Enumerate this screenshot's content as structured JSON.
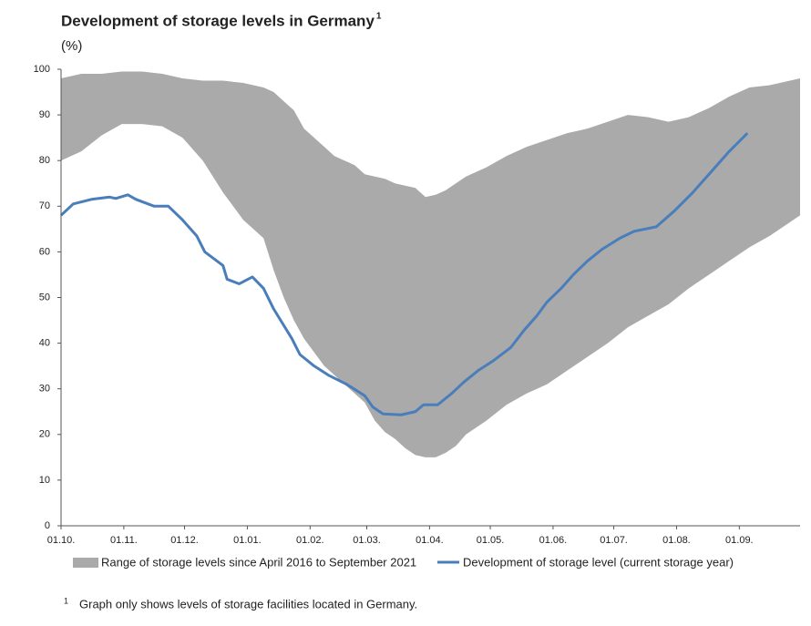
{
  "chart_data": {
    "type": "range-line",
    "title": "Development of storage levels in Germany",
    "y_label": "(%)",
    "xlim": [
      0,
      365
    ],
    "xticks": [
      {
        "value": 0,
        "label": "01.10."
      },
      {
        "value": 31,
        "label": "01.11."
      },
      {
        "value": 61,
        "label": "01.12."
      },
      {
        "value": 92,
        "label": "01.01."
      },
      {
        "value": 123,
        "label": "01.02."
      },
      {
        "value": 151,
        "label": "01.03."
      },
      {
        "value": 182,
        "label": "01.04."
      },
      {
        "value": 212,
        "label": "01.05."
      },
      {
        "value": 243,
        "label": "01.06."
      },
      {
        "value": 273,
        "label": "01.07."
      },
      {
        "value": 304,
        "label": "01.08."
      },
      {
        "value": 335,
        "label": "01.09."
      }
    ],
    "ylim": [
      0,
      100
    ],
    "yticks": [
      0,
      10,
      20,
      30,
      40,
      50,
      60,
      70,
      80,
      90,
      100
    ],
    "series": [
      {
        "name": "Range of storage levels since April 2016 to September 2021",
        "color": "#aaaaaa",
        "x": [
          0,
          10,
          20,
          30,
          40,
          50,
          60,
          70,
          80,
          90,
          100,
          105,
          110,
          115,
          120,
          125,
          130,
          135,
          140,
          145,
          150,
          155,
          160,
          165,
          170,
          175,
          180,
          185,
          190,
          195,
          200,
          210,
          220,
          230,
          240,
          250,
          260,
          270,
          280,
          290,
          300,
          310,
          320,
          330,
          340,
          350,
          365
        ],
        "upper": [
          98,
          99,
          99,
          99.5,
          99.5,
          99,
          98,
          97.5,
          97.5,
          97,
          96,
          95,
          93,
          91,
          87,
          85,
          83,
          81,
          80,
          79,
          77,
          76.5,
          76,
          75,
          74.5,
          74,
          72,
          72.5,
          73.5,
          75,
          76.5,
          78.5,
          81,
          83,
          84.5,
          86,
          87,
          88.5,
          90,
          89.5,
          88.5,
          89.5,
          91.5,
          94,
          96,
          96.5,
          98
        ],
        "lower": [
          80,
          82,
          85.5,
          88,
          88,
          87.5,
          85,
          80,
          73,
          67,
          63,
          56,
          50,
          45,
          41,
          38,
          35,
          33,
          31,
          29,
          27,
          23,
          20.5,
          19,
          17,
          15.5,
          15,
          15,
          16,
          17.5,
          20,
          23,
          26.5,
          29,
          31,
          34,
          37,
          40,
          43.5,
          46,
          48.5,
          52,
          55,
          58,
          61,
          63.5,
          68
        ]
      },
      {
        "name": "Development of storage level (current storage year)",
        "color": "#4a7ebb",
        "x": [
          0,
          6,
          15,
          24,
          27,
          33,
          37,
          46,
          53,
          60,
          67,
          71,
          80,
          82,
          88,
          94.5,
          100,
          105,
          114,
          118,
          125,
          132,
          141,
          150,
          154,
          159,
          168,
          175,
          179,
          186,
          193,
          199,
          206,
          213,
          222,
          229,
          235,
          240,
          247,
          253,
          260,
          267,
          276,
          283,
          294,
          303,
          312,
          321,
          330,
          339
        ],
        "values": [
          68,
          70.5,
          71.5,
          72,
          71.7,
          72.5,
          71.5,
          70,
          70,
          67,
          63.5,
          60,
          57,
          54,
          53,
          54.5,
          52,
          47.5,
          41,
          37.5,
          35,
          33,
          31,
          28.5,
          26,
          24.5,
          24.3,
          25,
          26.5,
          26.5,
          29,
          31.5,
          34,
          36,
          39,
          43,
          46,
          49,
          52,
          55,
          58,
          60.5,
          63,
          64.5,
          65.5,
          69,
          73,
          77.5,
          82,
          86
        ]
      }
    ],
    "footnote": {
      "marker": "1",
      "text": "Graph only shows levels of storage facilities located in Germany."
    }
  }
}
